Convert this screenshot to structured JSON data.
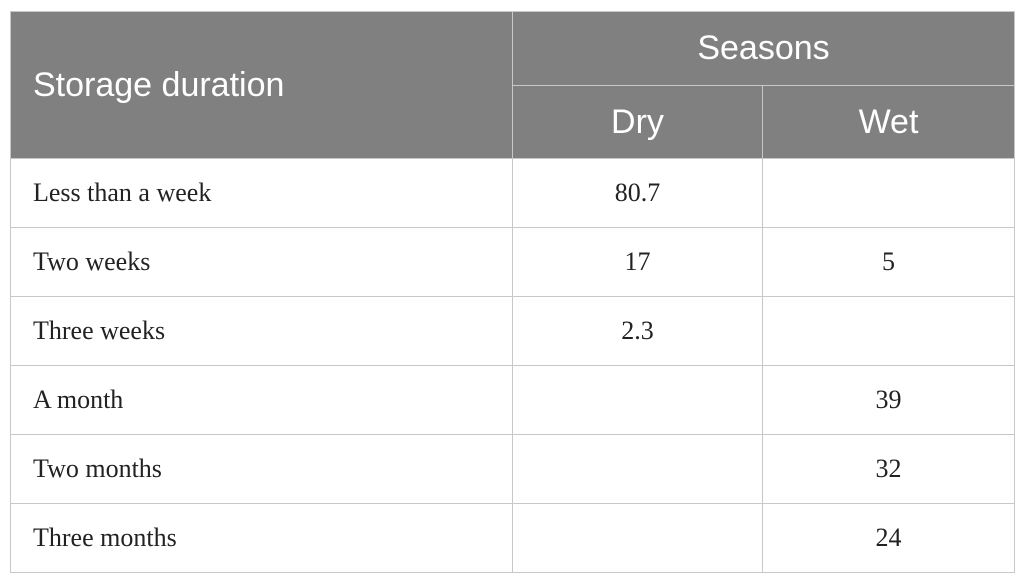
{
  "table": {
    "header": {
      "row_label": "Storage duration",
      "group": "Seasons",
      "columns": [
        "Dry",
        "Wet"
      ]
    },
    "rows": [
      {
        "label": "Less than a week",
        "dry": "80.7",
        "wet": ""
      },
      {
        "label": "Two weeks",
        "dry": "17",
        "wet": "5"
      },
      {
        "label": "Three weeks",
        "dry": "2.3",
        "wet": ""
      },
      {
        "label": "A month",
        "dry": "",
        "wet": "39"
      },
      {
        "label": "Two months",
        "dry": "",
        "wet": "32"
      },
      {
        "label": "Three months",
        "dry": "",
        "wet": "24"
      }
    ]
  },
  "colors": {
    "header_bg": "#808080",
    "header_text": "#ffffff",
    "border": "#c8c8c8"
  }
}
